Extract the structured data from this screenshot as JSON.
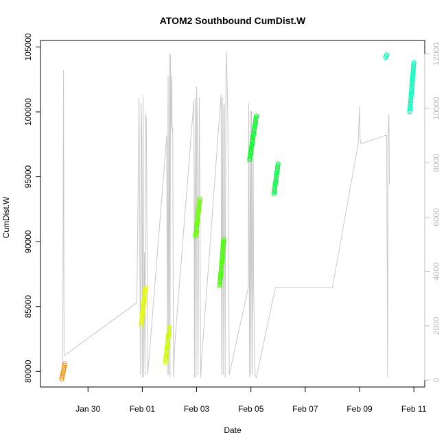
{
  "chart_data": {
    "type": "scatter",
    "title": "ATOM2 Southbound CumDist.W",
    "xlabel": "Date",
    "ylabel": "CumDist.W",
    "x_ticks": [
      "Jan 30",
      "Feb 01",
      "Feb 03",
      "Feb 05",
      "Feb 07",
      "Feb 09",
      "Feb 11"
    ],
    "y_ticks": [
      80000,
      85000,
      90000,
      95000,
      100000,
      105000
    ],
    "y2_ticks": [
      0,
      2000,
      4000,
      6000,
      8000,
      10000,
      12000
    ],
    "xlim_days_from_jan30": [
      -1.75,
      12.4
    ],
    "ylim": [
      78800,
      105500
    ],
    "y2lim": [
      -250,
      12500
    ],
    "grid": false,
    "legend": "none",
    "background_series": {
      "name": "",
      "color": "#c8c8c8",
      "axis": "right",
      "x": [
        -0.95,
        -0.93,
        -0.9,
        -0.88,
        1.8,
        1.88,
        1.93,
        1.96,
        1.98,
        2.0,
        2.03,
        2.05,
        2.08,
        2.1,
        2.12,
        2.15,
        2.2,
        2.9,
        2.92,
        2.95,
        2.97,
        3.0,
        3.02,
        3.04,
        3.06,
        3.08,
        3.1,
        3.12,
        3.15,
        3.2,
        3.9,
        3.92,
        3.95,
        3.98,
        4.0,
        4.02,
        4.05,
        4.1,
        4.15,
        4.2,
        4.9,
        4.92,
        4.95,
        4.98,
        5.0,
        5.02,
        5.05,
        5.08,
        5.1,
        5.15,
        5.2,
        5.9,
        5.92,
        5.95,
        5.98,
        6.0,
        6.02,
        6.05,
        6.08,
        6.1,
        6.15,
        6.2,
        6.9,
        6.95,
        7.0,
        7.02,
        7.05,
        7.1,
        7.15,
        7.2,
        9.0,
        9.95,
        10.0,
        10.02,
        10.05,
        10.95,
        11.0,
        11.03,
        11.05,
        11.08,
        11.1
      ],
      "y": [
        600,
        1200,
        11400,
        900,
        2850,
        10400,
        200,
        10200,
        9100,
        100,
        10500,
        100,
        4700,
        200,
        9800,
        9600,
        200,
        9000,
        200,
        11200,
        200,
        12000,
        100,
        12000,
        9300,
        11200,
        9100,
        9300,
        100,
        1400,
        10300,
        100,
        10400,
        100,
        10800,
        9600,
        200,
        10400,
        100,
        1000,
        10500,
        200,
        10400,
        200,
        10000,
        10200,
        100,
        11300,
        12100,
        9600,
        200,
        3400,
        10200,
        100,
        9900,
        200,
        9900,
        200,
        9200,
        3400,
        200,
        100,
        3400,
        3400,
        3400,
        3400,
        3400,
        3400,
        3400,
        3400,
        3400,
        8700,
        10100,
        8900,
        8700,
        9000,
        9000,
        100,
        8900,
        9800,
        7200
      ]
    },
    "series": [
      {
        "name": "",
        "color": "#ff8c00",
        "x_start": -0.97,
        "x_end": -0.85,
        "y_start": 79400,
        "y_end": 80600
      },
      {
        "name": "",
        "color": "#e6ff00",
        "x_start": 1.96,
        "x_end": 2.12,
        "y_start": 83600,
        "y_end": 86500
      },
      {
        "name": "",
        "color": "#ccff00",
        "x_start": 2.85,
        "x_end": 3.0,
        "y_start": 80700,
        "y_end": 83400
      },
      {
        "name": "",
        "color": "#66ff00",
        "x_start": 3.96,
        "x_end": 4.12,
        "y_start": 90400,
        "y_end": 93300
      },
      {
        "name": "",
        "color": "#44ff00",
        "x_start": 4.85,
        "x_end": 5.0,
        "y_start": 86600,
        "y_end": 90200
      },
      {
        "name": "",
        "color": "#00ff22",
        "x_start": 5.95,
        "x_end": 6.2,
        "y_start": 96300,
        "y_end": 99700
      },
      {
        "name": "",
        "color": "#00ff44",
        "x_start": 6.85,
        "x_end": 7.0,
        "y_start": 93700,
        "y_end": 96000
      },
      {
        "name": "",
        "color": "#00ffaa",
        "x_start": 10.96,
        "x_end": 11.0,
        "y_start": 104200,
        "y_end": 104400
      },
      {
        "name": "",
        "color": "#00ffbb",
        "x_start": 11.85,
        "x_end": 12.0,
        "y_start": 100000,
        "y_end": 103800
      }
    ]
  }
}
